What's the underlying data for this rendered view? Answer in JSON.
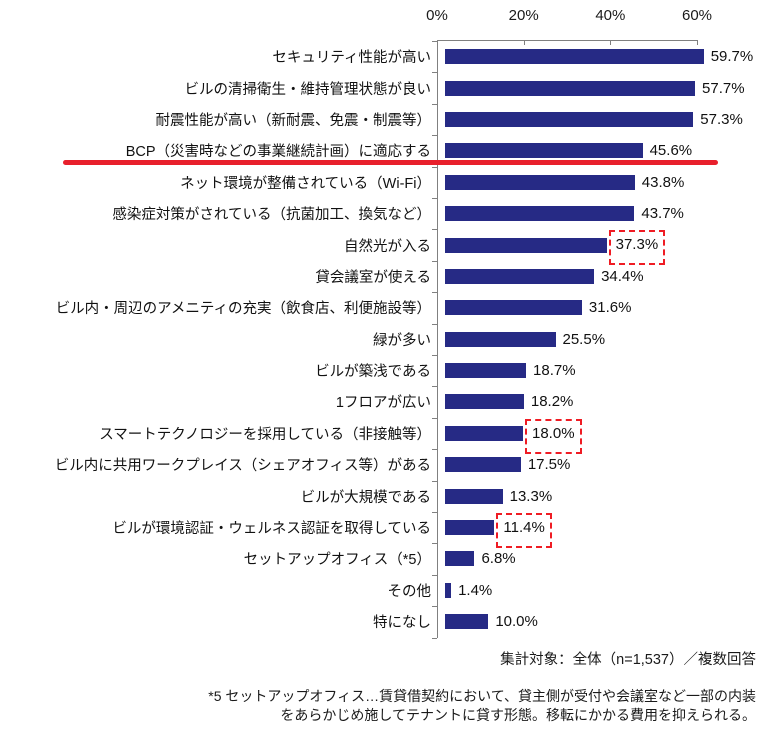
{
  "chart_data": {
    "type": "bar",
    "orientation": "horizontal",
    "title": "",
    "categories": [
      "セキュリティ性能が高い",
      "ビルの清掃衛生・維持管理状態が良い",
      "耐震性能が高い（新耐震、免震・制震等）",
      "BCP（災害時などの事業継続計画）に適応する",
      "ネット環境が整備されている（Wi-Fi）",
      "感染症対策がされている（抗菌加工、換気など）",
      "自然光が入る",
      "貸会議室が使える",
      "ビル内・周辺のアメニティの充実（飲食店、利便施設等）",
      "緑が多い",
      "ビルが築浅である",
      "1フロアが広い",
      "スマートテクノロジーを採用している（非接触等）",
      "ビル内に共用ワークプレイス（シェアオフィス等）がある",
      "ビルが大規模である",
      "ビルが環境認証・ウェルネス認証を取得している",
      "セットアップオフィス（*5）",
      "その他",
      "特になし"
    ],
    "values": [
      59.7,
      57.7,
      57.3,
      45.6,
      43.8,
      43.7,
      37.3,
      34.4,
      31.6,
      25.5,
      18.7,
      18.2,
      18.0,
      17.5,
      13.3,
      11.4,
      6.8,
      1.4,
      10.0
    ],
    "value_labels": [
      "59.7%",
      "57.7%",
      "57.3%",
      "45.6%",
      "43.8%",
      "43.7%",
      "37.3%",
      "34.4%",
      "31.6%",
      "25.5%",
      "18.7%",
      "18.2%",
      "18.0%",
      "17.5%",
      "13.3%",
      "11.4%",
      "6.8%",
      "1.4%",
      "10.0%"
    ],
    "x_axis": {
      "position": "top",
      "ticks": [
        "0%",
        "20%",
        "40%",
        "60%"
      ],
      "range": [
        0,
        60
      ],
      "grid": false
    },
    "legend": null,
    "annotations": {
      "underline_category_index": 3,
      "highlight_value_indices": [
        6,
        12,
        15
      ]
    },
    "colors": {
      "bar": "#262a85",
      "underline": "#e8202c",
      "highlight_box": "#ef1c24",
      "axis": "#808080",
      "text": "#1a1a1a"
    }
  },
  "footer": {
    "note": "集計対象：全体（n=1,537）／複数回答"
  },
  "footnote": {
    "line1": "*5 セットアップオフィス…賃貸借契約において、貸主側が受付や会議室など一部の内装",
    "line2": "をあらかじめ施してテナントに貸す形態。移転にかかる費用を抑えられる。"
  }
}
